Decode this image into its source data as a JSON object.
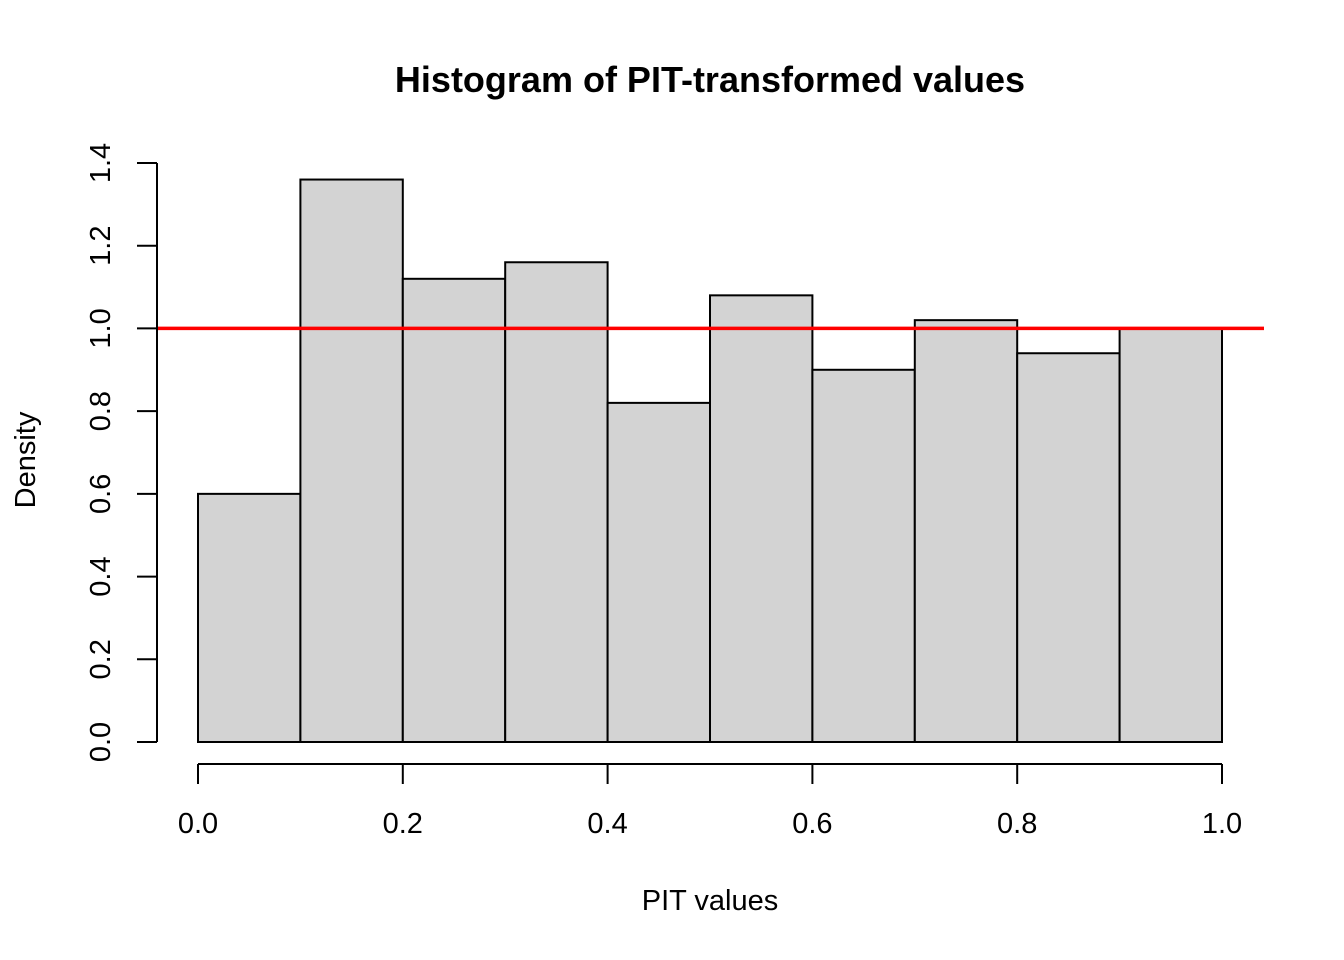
{
  "chart_data": {
    "type": "bar",
    "title": "Histogram of PIT-transformed values",
    "xlabel": "PIT values",
    "ylabel": "Density",
    "bins": [
      {
        "start": 0.0,
        "end": 0.1,
        "density": 0.6
      },
      {
        "start": 0.1,
        "end": 0.2,
        "density": 1.36
      },
      {
        "start": 0.2,
        "end": 0.3,
        "density": 1.12
      },
      {
        "start": 0.3,
        "end": 0.4,
        "density": 1.16
      },
      {
        "start": 0.4,
        "end": 0.5,
        "density": 0.82
      },
      {
        "start": 0.5,
        "end": 0.6,
        "density": 1.08
      },
      {
        "start": 0.6,
        "end": 0.7,
        "density": 0.9
      },
      {
        "start": 0.7,
        "end": 0.8,
        "density": 1.02
      },
      {
        "start": 0.8,
        "end": 0.9,
        "density": 0.94
      },
      {
        "start": 0.9,
        "end": 1.0,
        "density": 1.0
      }
    ],
    "xlim": [
      0.0,
      1.0
    ],
    "ylim": [
      0.0,
      1.4
    ],
    "x_ticks": [
      {
        "value": 0.0,
        "label": "0.0"
      },
      {
        "value": 0.2,
        "label": "0.2"
      },
      {
        "value": 0.4,
        "label": "0.4"
      },
      {
        "value": 0.6,
        "label": "0.6"
      },
      {
        "value": 0.8,
        "label": "0.8"
      },
      {
        "value": 1.0,
        "label": "1.0"
      }
    ],
    "y_ticks": [
      {
        "value": 0.0,
        "label": "0.0"
      },
      {
        "value": 0.2,
        "label": "0.2"
      },
      {
        "value": 0.4,
        "label": "0.4"
      },
      {
        "value": 0.6,
        "label": "0.6"
      },
      {
        "value": 0.8,
        "label": "0.8"
      },
      {
        "value": 1.0,
        "label": "1.0"
      },
      {
        "value": 1.2,
        "label": "1.2"
      },
      {
        "value": 1.4,
        "label": "1.4"
      }
    ],
    "reference_line": {
      "y": 1.0,
      "color": "#ff0000"
    },
    "bar_fill": "#d3d3d3",
    "bar_stroke": "#000000",
    "grid": false,
    "legend": "none"
  }
}
